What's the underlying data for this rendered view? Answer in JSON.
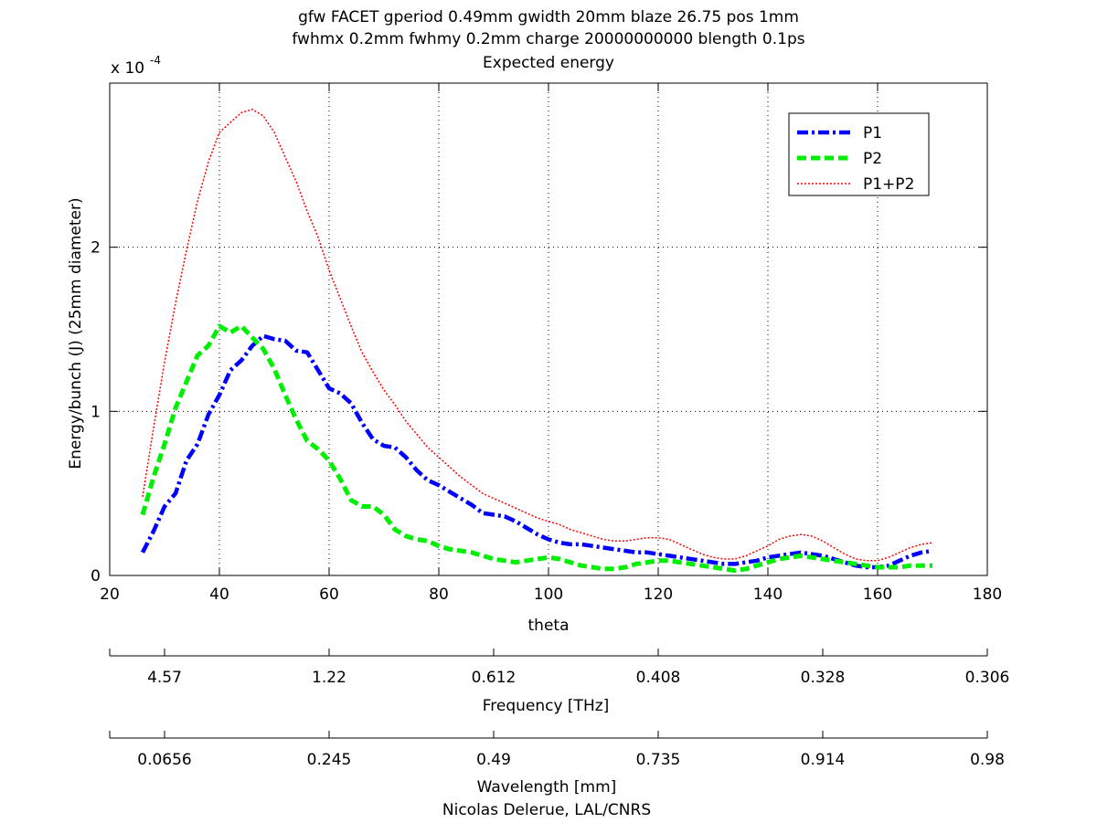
{
  "chart_data": {
    "type": "line",
    "title_lines": [
      "gfw FACET gperiod 0.49mm gwidth 20mm blaze 26.75 pos 1mm",
      "fwhmx 0.2mm fwhmy 0.2mm charge 20000000000 blength 0.1ps",
      "Expected energy"
    ],
    "xlabel": "theta",
    "ylabel": "Energy/bunch (J) (25mm diameter)",
    "y_multiplier_label": "x 10",
    "y_multiplier_exponent": "-4",
    "xlim": [
      20,
      180
    ],
    "ylim": [
      0,
      3.0
    ],
    "x_ticks": [
      "20",
      "40",
      "60",
      "80",
      "100",
      "120",
      "140",
      "160",
      "180"
    ],
    "y_ticks": [
      "0",
      "1",
      "2"
    ],
    "grid": "dotted",
    "legend_position": "top-right",
    "series": [
      {
        "name": "P1",
        "color": "#0000ff",
        "style": "dash-dot",
        "x": [
          26,
          28,
          30,
          32,
          34,
          36,
          38,
          40,
          42,
          44,
          46,
          48,
          50,
          52,
          54,
          56,
          58,
          60,
          62,
          64,
          66,
          68,
          70,
          72,
          74,
          76,
          78,
          80,
          82,
          84,
          86,
          88,
          90,
          92,
          94,
          96,
          98,
          100,
          102,
          104,
          106,
          108,
          110,
          112,
          114,
          116,
          118,
          120,
          122,
          124,
          126,
          128,
          130,
          132,
          134,
          136,
          138,
          140,
          142,
          144,
          146,
          148,
          150,
          152,
          154,
          156,
          158,
          160,
          162,
          164,
          166,
          168,
          170
        ],
        "values": [
          0.14,
          0.27,
          0.42,
          0.5,
          0.7,
          0.8,
          0.98,
          1.1,
          1.25,
          1.31,
          1.4,
          1.46,
          1.44,
          1.43,
          1.37,
          1.36,
          1.25,
          1.14,
          1.11,
          1.05,
          0.93,
          0.83,
          0.79,
          0.78,
          0.72,
          0.64,
          0.58,
          0.55,
          0.51,
          0.47,
          0.43,
          0.38,
          0.37,
          0.36,
          0.33,
          0.29,
          0.25,
          0.22,
          0.2,
          0.19,
          0.19,
          0.18,
          0.17,
          0.16,
          0.15,
          0.14,
          0.14,
          0.13,
          0.12,
          0.11,
          0.1,
          0.09,
          0.08,
          0.07,
          0.07,
          0.08,
          0.09,
          0.11,
          0.12,
          0.13,
          0.14,
          0.13,
          0.12,
          0.1,
          0.08,
          0.06,
          0.05,
          0.05,
          0.06,
          0.09,
          0.12,
          0.14,
          0.15
        ]
      },
      {
        "name": "P2",
        "color": "#00ee00",
        "style": "dashed",
        "x": [
          26,
          28,
          30,
          32,
          34,
          36,
          38,
          40,
          42,
          44,
          46,
          48,
          50,
          52,
          54,
          56,
          58,
          60,
          62,
          64,
          66,
          68,
          70,
          72,
          74,
          76,
          78,
          80,
          82,
          84,
          86,
          88,
          90,
          92,
          94,
          96,
          98,
          100,
          102,
          104,
          106,
          108,
          110,
          112,
          114,
          116,
          118,
          120,
          122,
          124,
          126,
          128,
          130,
          132,
          134,
          136,
          138,
          140,
          142,
          144,
          146,
          148,
          150,
          152,
          154,
          156,
          158,
          160,
          162,
          164,
          166,
          168,
          170
        ],
        "values": [
          0.37,
          0.6,
          0.8,
          1.02,
          1.18,
          1.34,
          1.4,
          1.52,
          1.48,
          1.52,
          1.45,
          1.38,
          1.26,
          1.1,
          0.95,
          0.82,
          0.77,
          0.7,
          0.59,
          0.46,
          0.42,
          0.42,
          0.37,
          0.28,
          0.24,
          0.22,
          0.21,
          0.18,
          0.16,
          0.15,
          0.14,
          0.12,
          0.1,
          0.09,
          0.08,
          0.09,
          0.1,
          0.11,
          0.1,
          0.08,
          0.06,
          0.05,
          0.04,
          0.04,
          0.05,
          0.07,
          0.08,
          0.09,
          0.09,
          0.08,
          0.07,
          0.06,
          0.05,
          0.04,
          0.03,
          0.04,
          0.06,
          0.08,
          0.1,
          0.11,
          0.12,
          0.11,
          0.1,
          0.09,
          0.08,
          0.07,
          0.06,
          0.05,
          0.05,
          0.05,
          0.06,
          0.06,
          0.06
        ]
      },
      {
        "name": "P1+P2",
        "color": "#ff0000",
        "style": "dotted",
        "x": [
          26,
          28,
          30,
          32,
          34,
          36,
          38,
          40,
          42,
          44,
          46,
          48,
          50,
          52,
          54,
          56,
          58,
          60,
          62,
          64,
          66,
          68,
          70,
          72,
          74,
          76,
          78,
          80,
          82,
          84,
          86,
          88,
          90,
          92,
          94,
          96,
          98,
          100,
          102,
          104,
          106,
          108,
          110,
          112,
          114,
          116,
          118,
          120,
          122,
          124,
          126,
          128,
          130,
          132,
          134,
          136,
          138,
          140,
          142,
          144,
          146,
          148,
          150,
          152,
          154,
          156,
          158,
          160,
          162,
          164,
          166,
          168,
          170
        ],
        "values": [
          0.48,
          0.9,
          1.3,
          1.66,
          1.98,
          2.28,
          2.52,
          2.7,
          2.76,
          2.82,
          2.84,
          2.8,
          2.7,
          2.55,
          2.4,
          2.22,
          2.06,
          1.86,
          1.69,
          1.52,
          1.36,
          1.24,
          1.13,
          1.04,
          0.94,
          0.86,
          0.78,
          0.72,
          0.66,
          0.6,
          0.55,
          0.5,
          0.47,
          0.44,
          0.41,
          0.38,
          0.35,
          0.33,
          0.31,
          0.28,
          0.26,
          0.24,
          0.22,
          0.21,
          0.21,
          0.22,
          0.23,
          0.23,
          0.22,
          0.19,
          0.16,
          0.13,
          0.11,
          0.1,
          0.1,
          0.12,
          0.15,
          0.18,
          0.22,
          0.24,
          0.25,
          0.24,
          0.21,
          0.17,
          0.13,
          0.1,
          0.09,
          0.09,
          0.11,
          0.14,
          0.17,
          0.19,
          0.2
        ]
      }
    ],
    "frequency_axis": {
      "label": "Frequency [THz]",
      "tick_labels": [
        "4.57",
        "1.22",
        "0.612",
        "0.408",
        "0.328",
        "0.306"
      ]
    },
    "wavelength_axis": {
      "label": "Wavelength [mm]",
      "tick_labels": [
        "0.0656",
        "0.245",
        "0.49",
        "0.735",
        "0.914",
        "0.98"
      ]
    },
    "credit": "Nicolas Delerue, LAL/CNRS"
  }
}
